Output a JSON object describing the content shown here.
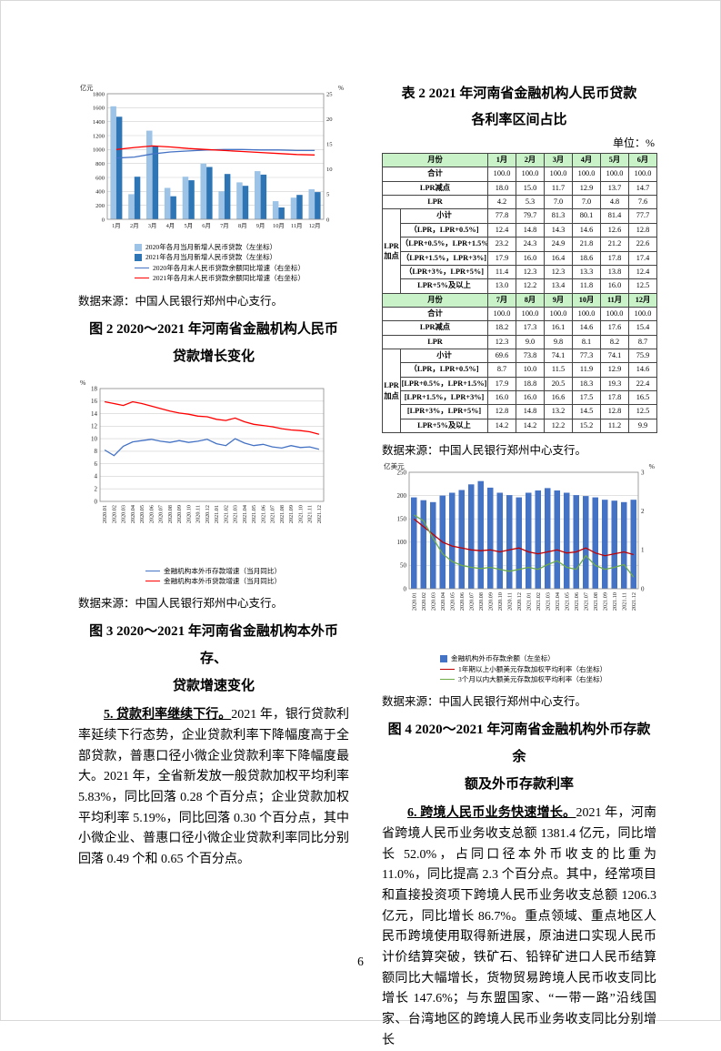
{
  "page": {
    "number": "6"
  },
  "source_note": "数据来源：中国人民银行郑州中心支行。",
  "colors": {
    "table_header_bg": "#C9F2C9",
    "bar_2020": "#9DC3E6",
    "bar_2021": "#2E75B6",
    "line_blue": "#4472C4",
    "line_red": "#FF0000",
    "line_dark_red": "#C00000",
    "line_green": "#70AD47"
  },
  "left": {
    "fig2_title_line1": "图 2 2020～2021 年河南省金融机构人民币",
    "fig2_title_line2": "贷款增长变化",
    "fig3_title_line1": "图 3  2020～2021 年河南省金融机构本外币存、",
    "fig3_title_line2": "贷款增速变化",
    "para5_bold": "5. 贷款利率继续下行。",
    "para5_text": "2021 年，银行贷款利率延续下行态势，企业贷款利率下降幅度高于全部贷款，普惠口径小微企业贷款利率下降幅度最大。2021 年，全省新发放一般贷款加权平均利率 5.83%，同比回落 0.28 个百分点；企业贷款加权平均利率 5.19%，同比回落 0.30 个百分点，其中小微企业、普惠口径小微企业贷款利率同比分别回落 0.49 个和 0.65 个百分点。"
  },
  "right": {
    "table_title_line1": "表 2 2021 年河南省金融机构人民币贷款",
    "table_title_line2": "各利率区间占比",
    "unit": "单位：%",
    "fig4_title_line1": "图 4  2020～2021 年河南省金融机构外币存款余",
    "fig4_title_line2": "额及外币存款利率",
    "para6_bold": "6. 跨境人民币业务快速增长。",
    "para6_text": "2021 年，河南省跨境人民币业务收支总额 1381.4 亿元，同比增长 52.0%，占同口径本外币收支的比重为 11.0%，同比提高 2.3 个百分点。其中，经常项目和直接投资项下跨境人民币业务收支总额 1206.3 亿元，同比增长 86.7%。重点领域、重点地区人民币跨境使用取得新进展，原油进口实现人民币计价结算突破，铁矿石、铅锌矿进口人民币结算额同比大幅增长，货物贸易跨境人民币收支同比增长 147.6%；与东盟国家、“一带一路”沿线国家、台湾地区的跨境人民币业务收支同比分别增长"
  },
  "table2": {
    "sections": [
      {
        "header": [
          "月份",
          "1月",
          "2月",
          "3月",
          "4月",
          "5月",
          "6月"
        ],
        "rows": [
          {
            "label": "合计",
            "span": 2,
            "values": [
              "100.0",
              "100.0",
              "100.0",
              "100.0",
              "100.0",
              "100.0"
            ]
          },
          {
            "label": "LPR减点",
            "span": 2,
            "values": [
              "18.0",
              "15.0",
              "11.7",
              "12.9",
              "13.7",
              "14.7"
            ]
          },
          {
            "label": "LPR",
            "span": 2,
            "values": [
              "4.2",
              "5.3",
              "7.0",
              "7.0",
              "4.8",
              "7.6"
            ]
          },
          {
            "group": "LPR加点",
            "label": "小计",
            "values": [
              "77.8",
              "79.7",
              "81.3",
              "80.1",
              "81.4",
              "77.7"
            ]
          },
          {
            "label": "（LPR，LPR+0.5%]",
            "values": [
              "12.4",
              "14.8",
              "14.3",
              "14.6",
              "12.6",
              "12.8"
            ]
          },
          {
            "label": "（LPR+0.5%，LPR+1.5%]",
            "values": [
              "23.2",
              "24.3",
              "24.9",
              "21.8",
              "21.2",
              "22.6"
            ]
          },
          {
            "label": "（LPR+1.5%，LPR+3%]",
            "values": [
              "17.9",
              "16.0",
              "16.4",
              "18.6",
              "17.8",
              "17.4"
            ]
          },
          {
            "label": "（LPR+3%，LPR+5%]",
            "values": [
              "11.4",
              "12.3",
              "12.3",
              "13.3",
              "13.8",
              "12.4"
            ]
          },
          {
            "label": "LPR+5%及以上",
            "values": [
              "13.0",
              "12.2",
              "13.4",
              "11.8",
              "16.0",
              "12.5"
            ]
          }
        ]
      },
      {
        "header": [
          "月份",
          "7月",
          "8月",
          "9月",
          "10月",
          "11月",
          "12月"
        ],
        "rows": [
          {
            "label": "合计",
            "span": 2,
            "values": [
              "100.0",
              "100.0",
              "100.0",
              "100.0",
              "100.0",
              "100.0"
            ]
          },
          {
            "label": "LPR减点",
            "span": 2,
            "values": [
              "18.2",
              "17.3",
              "16.1",
              "14.6",
              "17.6",
              "15.4"
            ]
          },
          {
            "label": "LPR",
            "span": 2,
            "values": [
              "12.3",
              "9.0",
              "9.8",
              "8.1",
              "8.2",
              "8.7"
            ]
          },
          {
            "group": "LPR加点",
            "label": "小计",
            "values": [
              "69.6",
              "73.8",
              "74.1",
              "77.3",
              "74.1",
              "75.9"
            ]
          },
          {
            "label": "（LPR，LPR+0.5%]",
            "values": [
              "8.7",
              "10.0",
              "11.5",
              "11.9",
              "12.9",
              "14.6"
            ]
          },
          {
            "label": "[LPR+0.5%，LPR+1.5%]",
            "values": [
              "17.9",
              "18.8",
              "20.5",
              "18.3",
              "19.3",
              "22.4"
            ]
          },
          {
            "label": "[LPR+1.5%，LPR+3%]",
            "values": [
              "16.0",
              "16.0",
              "16.6",
              "17.5",
              "17.8",
              "16.5"
            ]
          },
          {
            "label": "[LPR+3%，LPR+5%]",
            "values": [
              "12.8",
              "14.8",
              "13.2",
              "14.5",
              "12.8",
              "12.5"
            ]
          },
          {
            "label": "LPR+5%及以上",
            "values": [
              "14.2",
              "14.2",
              "12.2",
              "15.2",
              "11.2",
              "9.9"
            ]
          }
        ]
      }
    ]
  },
  "chart_data": [
    {
      "id": "rmb-new-loans",
      "type": "bar",
      "title": "",
      "ylabel_left": "亿元",
      "ylabel_right": "%",
      "ylim_left": [
        0,
        1800
      ],
      "ystep_left": 200,
      "ylim_right": [
        0,
        25
      ],
      "ystep_right": 5,
      "grid": true,
      "legend_position": "bottom",
      "categories": [
        "1月",
        "2月",
        "3月",
        "4月",
        "5月",
        "6月",
        "7月",
        "8月",
        "9月",
        "10月",
        "11月",
        "12月"
      ],
      "bar_series": [
        {
          "name": "2020年各月当月新增人民币贷款（左坐标）",
          "color": "#9DC3E6",
          "values": [
            1620,
            360,
            1270,
            450,
            610,
            800,
            400,
            530,
            690,
            260,
            310,
            430
          ]
        },
        {
          "name": "2021年各月当月新增人民币贷款（左坐标）",
          "color": "#2E75B6",
          "values": [
            1470,
            610,
            1050,
            330,
            560,
            750,
            650,
            480,
            640,
            170,
            350,
            390
          ]
        }
      ],
      "line_series": [
        {
          "name": "2020年各月末人民币贷款余额同比增速（右坐标）",
          "color": "#4472C4",
          "axis": "right",
          "values": [
            12.2,
            12.4,
            13.0,
            13.4,
            13.6,
            13.8,
            13.9,
            13.9,
            13.8,
            13.8,
            13.7,
            13.7
          ]
        },
        {
          "name": "2021年各月末人民币贷款余额同比增速（右坐标）",
          "color": "#FF0000",
          "axis": "right",
          "values": [
            13.9,
            14.3,
            14.6,
            14.4,
            14.1,
            13.9,
            13.7,
            13.5,
            13.3,
            13.1,
            12.9,
            12.8
          ]
        }
      ]
    },
    {
      "id": "deposit-loan-growth",
      "type": "line",
      "title": "",
      "ylabel_left": "%",
      "ylim_left": [
        0,
        18
      ],
      "ystep_left": 2,
      "grid": true,
      "legend_position": "bottom",
      "categories": [
        "2020.01",
        "2020.02",
        "2020.03",
        "2020.04",
        "2020.05",
        "2020.06",
        "2020.07",
        "2020.08",
        "2020.09",
        "2020.10",
        "2020.11",
        "2020.12",
        "2021.01",
        "2021.02",
        "2021.03",
        "2021.04",
        "2021.05",
        "2021.06",
        "2021.07",
        "2021.08",
        "2021.09",
        "2021.10",
        "2021.11",
        "2021.12"
      ],
      "line_series": [
        {
          "name": "金融机构本外币存款增速（当月同比）",
          "color": "#4472C4",
          "axis": "left",
          "values": [
            8.2,
            7.3,
            8.8,
            9.5,
            9.7,
            9.9,
            9.6,
            9.4,
            9.7,
            9.4,
            9.6,
            9.9,
            9.2,
            8.9,
            10.0,
            9.3,
            8.9,
            9.1,
            8.7,
            8.5,
            8.9,
            8.6,
            8.7,
            8.3
          ]
        },
        {
          "name": "金融机构本外币贷款增速（当月同比）",
          "color": "#FF0000",
          "axis": "left",
          "values": [
            15.9,
            15.6,
            15.3,
            15.9,
            15.6,
            15.2,
            14.8,
            14.4,
            14.1,
            13.9,
            13.6,
            13.5,
            13.1,
            12.9,
            13.3,
            12.7,
            12.3,
            12.1,
            11.9,
            11.6,
            11.4,
            11.3,
            11.1,
            10.7
          ]
        }
      ]
    },
    {
      "id": "fx-deposits",
      "type": "bar",
      "title": "",
      "ylabel_left": "亿美元",
      "ylabel_right": "%",
      "ylim_left": [
        0,
        250
      ],
      "ystep_left": 50,
      "ylim_right": [
        0,
        3
      ],
      "ystep_right": 1,
      "grid": true,
      "legend_position": "bottom",
      "categories": [
        "2020.01",
        "2020.02",
        "2020.03",
        "2020.04",
        "2020.05",
        "2020.06",
        "2020.07",
        "2020.08",
        "2020.09",
        "2020.10",
        "2020.11",
        "2020.12",
        "2021.01",
        "2021.02",
        "2021.03",
        "2021.04",
        "2021.05",
        "2021.06",
        "2021.07",
        "2021.08",
        "2021.09",
        "2021.10",
        "2021.11",
        "2021.12"
      ],
      "bar_series": [
        {
          "name": "金融机构外币存款余额（左坐标）",
          "color": "#4472C4",
          "values": [
            196,
            190,
            186,
            200,
            206,
            212,
            224,
            231,
            217,
            206,
            201,
            196,
            206,
            211,
            216,
            211,
            206,
            201,
            199,
            196,
            191,
            189,
            186,
            191
          ]
        }
      ],
      "line_series": [
        {
          "name": "1年期以上小额美元存款加权平均利率（右坐标）",
          "color": "#C00000",
          "axis": "right",
          "values": [
            1.8,
            1.6,
            1.4,
            1.2,
            1.1,
            1.05,
            1.0,
            0.98,
            1.0,
            0.95,
            1.0,
            1.05,
            0.95,
            0.9,
            0.95,
            1.0,
            0.92,
            0.95,
            1.05,
            0.92,
            0.85,
            0.9,
            0.95,
            0.88
          ]
        },
        {
          "name": "3个月以内大额美元存款加权平均利率（右坐标）",
          "color": "#70AD47",
          "axis": "right",
          "values": [
            1.9,
            1.75,
            1.3,
            0.9,
            0.7,
            0.6,
            0.55,
            0.52,
            0.55,
            0.5,
            0.45,
            0.5,
            0.55,
            0.5,
            0.62,
            0.72,
            0.55,
            0.5,
            0.85,
            0.6,
            0.5,
            0.55,
            0.62,
            0.3
          ]
        }
      ]
    }
  ]
}
